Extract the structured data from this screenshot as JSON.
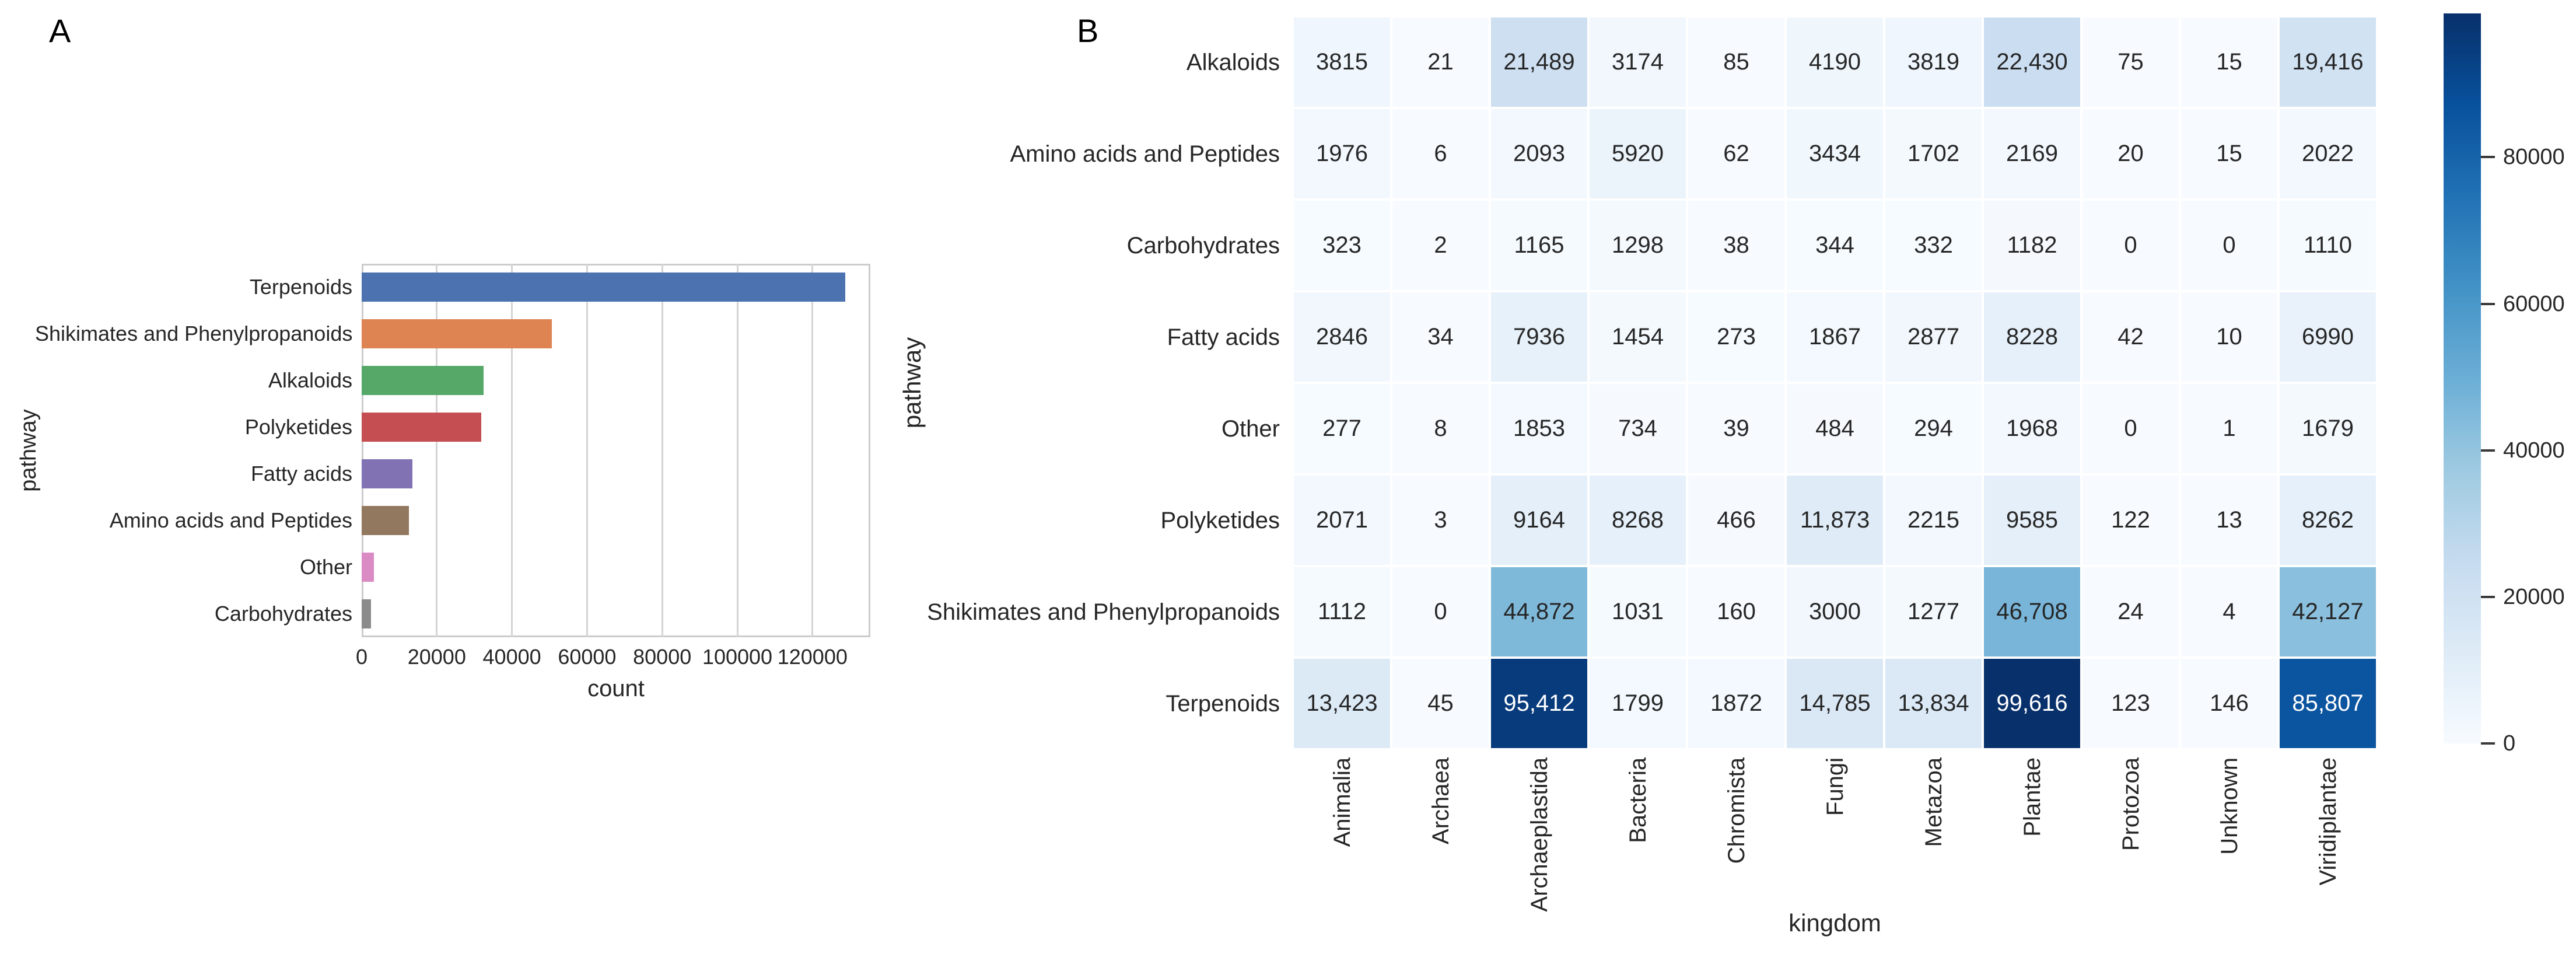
{
  "figure": {
    "background": "#ffffff",
    "panel_a_label": "A",
    "panel_b_label": "B"
  },
  "chart_data": [
    {
      "type": "bar",
      "orientation": "horizontal",
      "title": "",
      "xlabel": "count",
      "ylabel": "pathway",
      "categories": [
        "Terpenoids",
        "Shikimates and Phenylpropanoids",
        "Alkaloids",
        "Polyketides",
        "Fatty acids",
        "Amino acids and Peptides",
        "Other",
        "Carbohydrates"
      ],
      "values": [
        128800,
        50600,
        32400,
        31800,
        13500,
        12500,
        3200,
        2500
      ],
      "bar_colors": [
        "#4c72b0",
        "#dd8452",
        "#55a868",
        "#c44e52",
        "#8172b3",
        "#937860",
        "#da8bc3",
        "#8c8c8c"
      ],
      "x_ticks": [
        0,
        20000,
        40000,
        60000,
        80000,
        100000,
        120000
      ],
      "xlim": [
        0,
        135400
      ],
      "grid": "vertical-only",
      "legend": "none"
    },
    {
      "type": "heatmap",
      "title": "",
      "xlabel": "kingdom",
      "ylabel": "pathway",
      "rows": [
        "Alkaloids",
        "Amino acids and Peptides",
        "Carbohydrates",
        "Fatty acids",
        "Other",
        "Polyketides",
        "Shikimates and Phenylpropanoids",
        "Terpenoids"
      ],
      "columns": [
        "Animalia",
        "Archaea",
        "Archaeplastida",
        "Bacteria",
        "Chromista",
        "Fungi",
        "Metazoa",
        "Plantae",
        "Protozoa",
        "Unknown",
        "Viridiplantae"
      ],
      "values": [
        [
          3815,
          21,
          21489,
          3174,
          85,
          4190,
          3819,
          22430,
          75,
          15,
          19416
        ],
        [
          1976,
          6,
          2093,
          5920,
          62,
          3434,
          1702,
          2169,
          20,
          15,
          2022
        ],
        [
          323,
          2,
          1165,
          1298,
          38,
          344,
          332,
          1182,
          0,
          0,
          1110
        ],
        [
          2846,
          34,
          7936,
          1454,
          273,
          1867,
          2877,
          8228,
          42,
          10,
          6990
        ],
        [
          277,
          8,
          1853,
          734,
          39,
          484,
          294,
          1968,
          0,
          1,
          1679
        ],
        [
          2071,
          3,
          9164,
          8268,
          466,
          11873,
          2215,
          9585,
          122,
          13,
          8262
        ],
        [
          1112,
          0,
          44872,
          1031,
          160,
          3000,
          1277,
          46708,
          24,
          4,
          42127
        ],
        [
          13423,
          45,
          95412,
          1799,
          1872,
          14785,
          13834,
          99616,
          123,
          146,
          85807
        ]
      ],
      "annotated": true,
      "annotation_format": "thousands-comma-for-5plus-digits",
      "colormap": "Blues",
      "vmin": 0,
      "vmax": 99616,
      "colorbar_ticks": [
        0,
        20000,
        40000,
        60000,
        80000
      ],
      "colorbar_position": "right",
      "grid": "off"
    }
  ],
  "colors": {
    "text": "#262626",
    "annotation_light_text": "#ffffff",
    "grid": "#d4d4d4",
    "spine": "#cccccc",
    "cell_border": "#ffffff",
    "blues_anchors": [
      "#f7fbff",
      "#deebf7",
      "#c6dbef",
      "#9ecae1",
      "#6baed6",
      "#4292c6",
      "#2171b5",
      "#08519c",
      "#08306b"
    ]
  }
}
